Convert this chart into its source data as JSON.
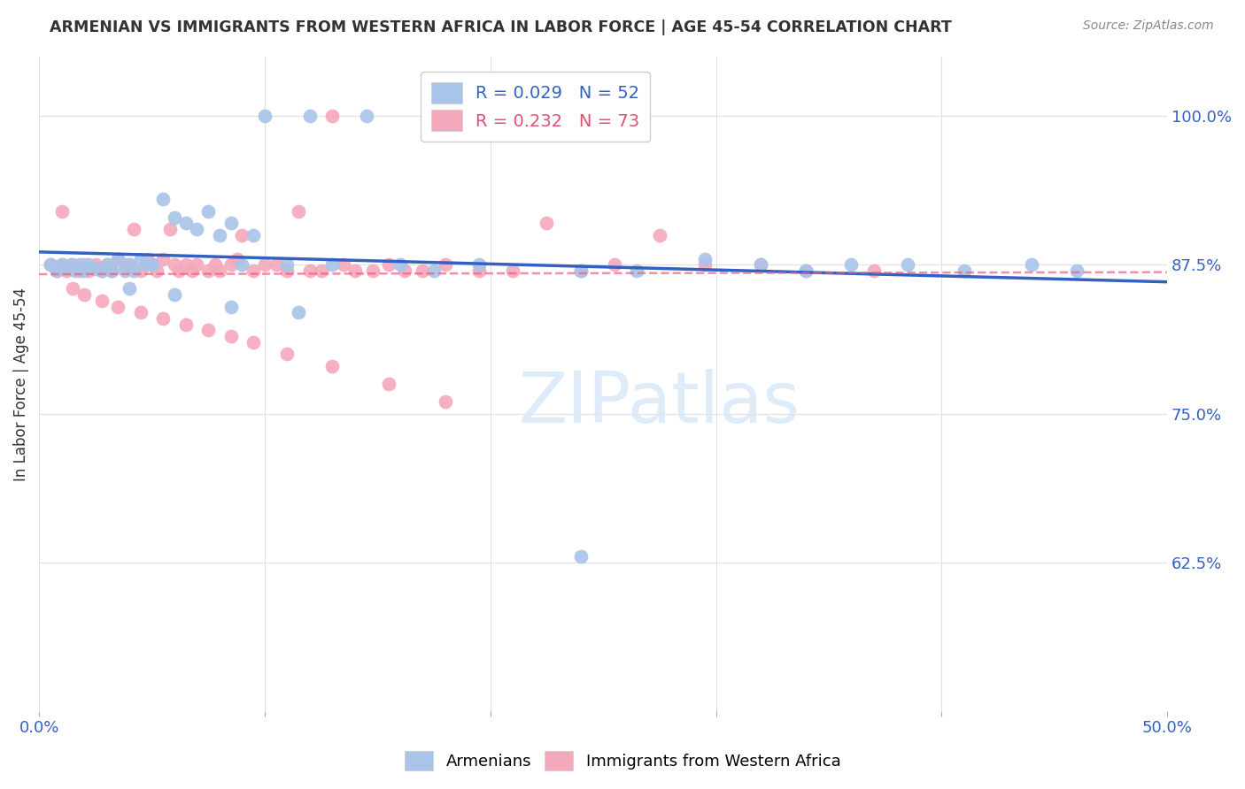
{
  "title": "ARMENIAN VS IMMIGRANTS FROM WESTERN AFRICA IN LABOR FORCE | AGE 45-54 CORRELATION CHART",
  "source": "Source: ZipAtlas.com",
  "ylabel": "In Labor Force | Age 45-54",
  "x_min": 0.0,
  "x_max": 0.5,
  "y_min": 0.5,
  "y_max": 1.05,
  "y_ticks_right": [
    1.0,
    0.875,
    0.75,
    0.625
  ],
  "y_tick_labels_right": [
    "100.0%",
    "87.5%",
    "75.0%",
    "62.5%"
  ],
  "armenian_R": "0.029",
  "armenian_N": "52",
  "western_africa_R": "0.232",
  "western_africa_N": "73",
  "armenian_color": "#a8c4e8",
  "western_africa_color": "#f4a8bc",
  "trendline_armenian_color": "#3461c1",
  "trendline_western_africa_color": "#e86080",
  "watermark_color": "#daeaf8",
  "background_color": "#ffffff",
  "grid_color": "#e0e0e0",
  "armenian_scatter_x": [
    0.005,
    0.008,
    0.01,
    0.012,
    0.014,
    0.016,
    0.018,
    0.02,
    0.022,
    0.025,
    0.028,
    0.03,
    0.032,
    0.035,
    0.038,
    0.04,
    0.042,
    0.045,
    0.048,
    0.05,
    0.055,
    0.06,
    0.065,
    0.07,
    0.075,
    0.08,
    0.085,
    0.09,
    0.095,
    0.1,
    0.11,
    0.12,
    0.13,
    0.145,
    0.16,
    0.175,
    0.195,
    0.24,
    0.265,
    0.295,
    0.32,
    0.34,
    0.36,
    0.385,
    0.41,
    0.44,
    0.46,
    0.04,
    0.06,
    0.085,
    0.115,
    0.24
  ],
  "armenian_scatter_y": [
    0.875,
    0.87,
    0.875,
    0.872,
    0.875,
    0.87,
    0.875,
    0.87,
    0.875,
    0.872,
    0.87,
    0.875,
    0.87,
    0.88,
    0.87,
    0.875,
    0.87,
    0.88,
    0.875,
    0.875,
    0.93,
    0.915,
    0.91,
    0.905,
    0.92,
    0.9,
    0.91,
    0.875,
    0.9,
    1.0,
    0.875,
    1.0,
    0.875,
    1.0,
    0.875,
    0.87,
    0.875,
    0.87,
    0.87,
    0.88,
    0.875,
    0.87,
    0.875,
    0.875,
    0.87,
    0.875,
    0.87,
    0.855,
    0.85,
    0.84,
    0.835,
    0.63
  ],
  "western_africa_scatter_x": [
    0.005,
    0.008,
    0.01,
    0.012,
    0.015,
    0.018,
    0.02,
    0.022,
    0.025,
    0.028,
    0.03,
    0.032,
    0.035,
    0.038,
    0.04,
    0.042,
    0.045,
    0.048,
    0.05,
    0.052,
    0.055,
    0.058,
    0.06,
    0.062,
    0.065,
    0.068,
    0.07,
    0.075,
    0.078,
    0.08,
    0.085,
    0.088,
    0.09,
    0.095,
    0.1,
    0.105,
    0.11,
    0.115,
    0.12,
    0.125,
    0.13,
    0.135,
    0.14,
    0.148,
    0.155,
    0.162,
    0.17,
    0.18,
    0.195,
    0.21,
    0.225,
    0.24,
    0.255,
    0.275,
    0.295,
    0.32,
    0.34,
    0.37,
    0.01,
    0.015,
    0.02,
    0.028,
    0.035,
    0.045,
    0.055,
    0.065,
    0.075,
    0.085,
    0.095,
    0.11,
    0.13,
    0.155,
    0.18
  ],
  "western_africa_scatter_y": [
    0.875,
    0.87,
    0.875,
    0.87,
    0.875,
    0.87,
    0.875,
    0.87,
    0.875,
    0.87,
    0.875,
    0.87,
    0.88,
    0.875,
    0.875,
    0.905,
    0.87,
    0.88,
    0.875,
    0.87,
    0.88,
    0.905,
    0.875,
    0.87,
    0.875,
    0.87,
    0.875,
    0.87,
    0.875,
    0.87,
    0.875,
    0.88,
    0.9,
    0.87,
    0.875,
    0.875,
    0.87,
    0.92,
    0.87,
    0.87,
    1.0,
    0.875,
    0.87,
    0.87,
    0.875,
    0.87,
    0.87,
    0.875,
    0.87,
    0.87,
    0.91,
    0.87,
    0.875,
    0.9,
    0.875,
    0.875,
    0.87,
    0.87,
    0.92,
    0.855,
    0.85,
    0.845,
    0.84,
    0.835,
    0.83,
    0.825,
    0.82,
    0.815,
    0.81,
    0.8,
    0.79,
    0.775,
    0.76
  ]
}
